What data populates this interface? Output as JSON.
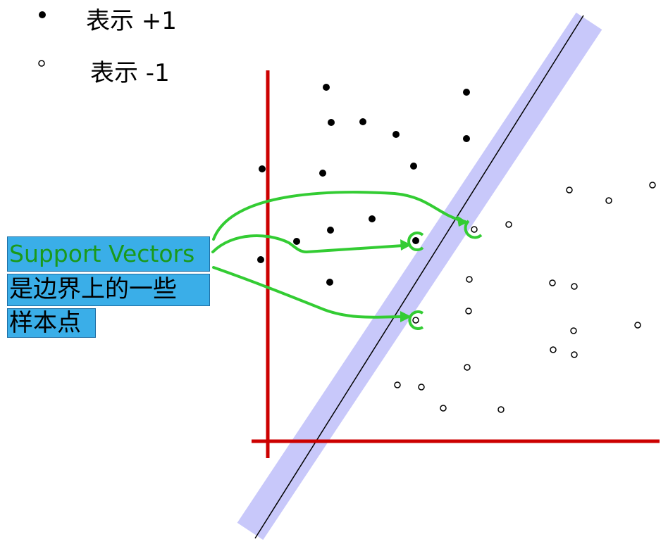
{
  "legend": {
    "positive_label": "表示 +1",
    "negative_label": "表示 -1"
  },
  "callout": {
    "title": "Support Vectors",
    "line1": "是边界上的一些",
    "line2": "样本点"
  },
  "colors": {
    "axes": "#cc0000",
    "margin_band": "#c8c8fa",
    "hyperplane": "#000000",
    "arrows": "#33cc33",
    "callout_bg": "#3aaee8",
    "callout_title": "#1a9a1a"
  }
}
